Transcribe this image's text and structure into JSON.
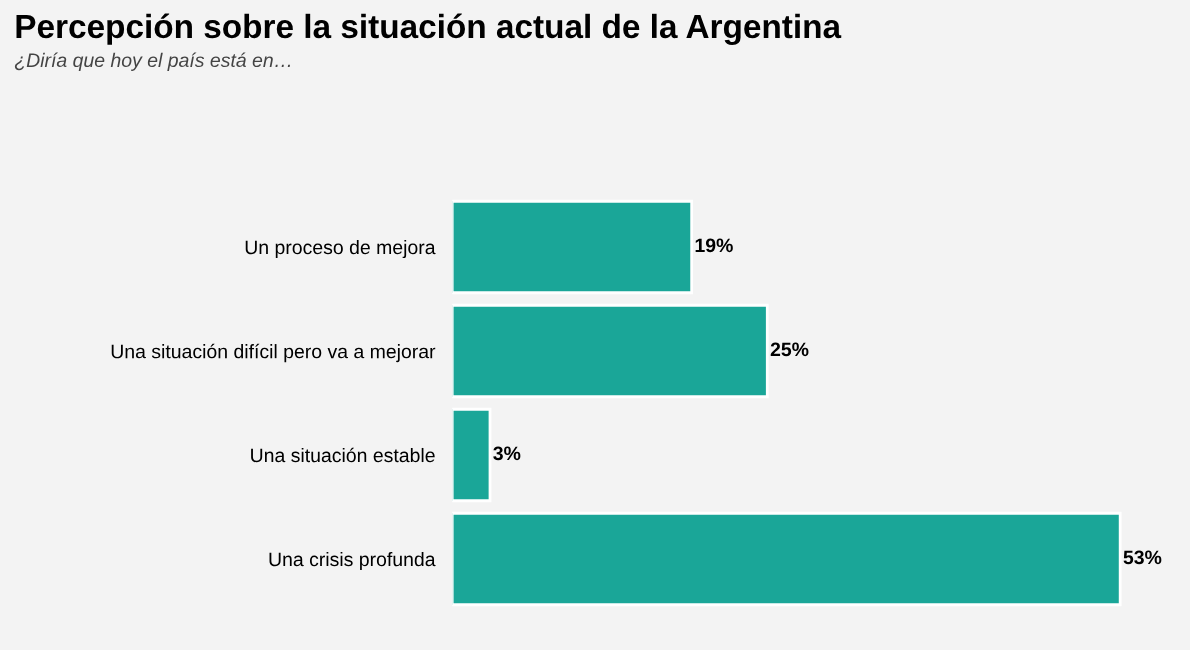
{
  "chart_data": {
    "type": "bar",
    "orientation": "horizontal",
    "title": "Percepción sobre la situación actual de la Argentina",
    "subtitle": "¿Diría que hoy el país está en…",
    "categories": [
      "Un proceso de mejora",
      "Una situación difícil pero va a mejorar",
      "Una situación estable",
      "Una crisis profunda"
    ],
    "values": [
      19,
      25,
      3,
      53
    ],
    "color": "#1aa698",
    "value_labels": [
      "19%",
      "25%",
      "3%",
      "53%"
    ],
    "grid": false,
    "legend": false
  }
}
